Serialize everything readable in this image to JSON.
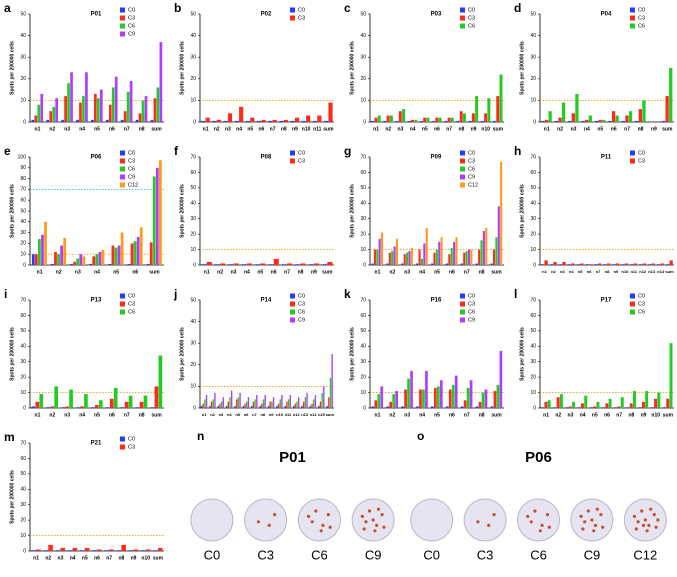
{
  "chart_data": [
    {
      "type": "bar",
      "panel": "a",
      "title": "P01",
      "y_label": "Spots per 200000 cells",
      "ylim": [
        0,
        50
      ],
      "yticks": [
        0,
        10,
        20,
        30,
        40,
        50
      ],
      "reference_lines": [
        {
          "value": 10,
          "color": "#f39c12"
        }
      ],
      "categories": [
        "n1",
        "n2",
        "n3",
        "n4",
        "n5",
        "n6",
        "n7",
        "n8",
        "sum"
      ],
      "series": [
        {
          "name": "C0",
          "color": "#1f3fff",
          "values": [
            1,
            1,
            1,
            1,
            1,
            1,
            1,
            1,
            1
          ]
        },
        {
          "name": "C3",
          "color": "#ff2a1a",
          "values": [
            3,
            5,
            12,
            9,
            13,
            8,
            5,
            4,
            11
          ]
        },
        {
          "name": "C6",
          "color": "#22cc22",
          "values": [
            8,
            7,
            18,
            12,
            11,
            16,
            14,
            10,
            16
          ]
        },
        {
          "name": "C9",
          "color": "#b03cff",
          "values": [
            13,
            11,
            23,
            23,
            15,
            21,
            19,
            12,
            37
          ]
        }
      ]
    },
    {
      "type": "bar",
      "panel": "b",
      "title": "P02",
      "y_label": "Spots per 200000 cells",
      "ylim": [
        0,
        50
      ],
      "yticks": [
        0,
        10,
        20,
        30,
        40,
        50
      ],
      "reference_lines": [
        {
          "value": 10,
          "color": "#f39c12"
        }
      ],
      "categories": [
        "n1",
        "n2",
        "n3",
        "n4",
        "n5",
        "n6",
        "n7",
        "n8",
        "n9",
        "n10",
        "n11",
        "sum"
      ],
      "series": [
        {
          "name": "C0",
          "color": "#1f3fff",
          "values": [
            0.5,
            0.5,
            0.5,
            0.5,
            0.5,
            0.5,
            0.5,
            0.5,
            0.5,
            0.5,
            0.5,
            0.5
          ]
        },
        {
          "name": "C3",
          "color": "#ff2a1a",
          "values": [
            2,
            1,
            4,
            7,
            2,
            1,
            1,
            1,
            2,
            3,
            3,
            9
          ]
        }
      ]
    },
    {
      "type": "bar",
      "panel": "c",
      "title": "P03",
      "y_label": "Spots per 200000 cells",
      "ylim": [
        0,
        50
      ],
      "yticks": [
        0,
        10,
        20,
        30,
        40,
        50
      ],
      "reference_lines": [
        {
          "value": 10,
          "color": "#f39c12"
        }
      ],
      "categories": [
        "n1",
        "n2",
        "n3",
        "n4",
        "n5",
        "n6",
        "n7",
        "n8",
        "n9",
        "n10",
        "sum"
      ],
      "series": [
        {
          "name": "C0",
          "color": "#1f3fff",
          "values": [
            0.5,
            0.5,
            0.5,
            0.5,
            0.5,
            0.5,
            0.5,
            0.5,
            0.5,
            0.5,
            0.5
          ]
        },
        {
          "name": "C3",
          "color": "#ff2a1a",
          "values": [
            2,
            3,
            5,
            1,
            2,
            2,
            2,
            5,
            4,
            4,
            12
          ]
        },
        {
          "name": "C6",
          "color": "#22cc22",
          "values": [
            3,
            3,
            6,
            1,
            2,
            2,
            2,
            4,
            12,
            11,
            22
          ]
        }
      ]
    },
    {
      "type": "bar",
      "panel": "d",
      "title": "P04",
      "y_label": "Spots per 200000 cells",
      "ylim": [
        0,
        50
      ],
      "yticks": [
        0,
        10,
        20,
        30,
        40,
        50
      ],
      "reference_lines": [
        {
          "value": 10,
          "color": "#f39c12"
        }
      ],
      "categories": [
        "n1",
        "n2",
        "n3",
        "n4",
        "n5",
        "n6",
        "n7",
        "n8",
        "n9",
        "sum"
      ],
      "series": [
        {
          "name": "C0",
          "color": "#1f3fff",
          "values": [
            0.5,
            0.5,
            0.5,
            0.5,
            0.5,
            0.5,
            0.5,
            0.5,
            0,
            0.5
          ]
        },
        {
          "name": "C3",
          "color": "#ff2a1a",
          "values": [
            1,
            2,
            4,
            1,
            1,
            5,
            3,
            6,
            0,
            12
          ]
        },
        {
          "name": "C6",
          "color": "#22cc22",
          "values": [
            5,
            9,
            13,
            3,
            1,
            3,
            5,
            10,
            0,
            25
          ]
        }
      ]
    },
    {
      "type": "bar",
      "panel": "e",
      "title": "P06",
      "y_label": "Spots per 200000 cells",
      "ylim": [
        0,
        100
      ],
      "yticks": [
        0,
        10,
        20,
        30,
        40,
        50,
        60,
        70,
        80,
        90,
        100
      ],
      "reference_lines": [
        {
          "value": 10,
          "color": "#f39c12"
        },
        {
          "value": 70,
          "color": "#1ec8e0"
        }
      ],
      "categories": [
        "n1",
        "n2",
        "n3",
        "n4",
        "n5",
        "n6",
        "sum"
      ],
      "series": [
        {
          "name": "C0",
          "color": "#1f3fff",
          "values": [
            10,
            1,
            1,
            1,
            1,
            1,
            1
          ]
        },
        {
          "name": "C3",
          "color": "#ff2a1a",
          "values": [
            10,
            12,
            3,
            8,
            18,
            20,
            21
          ]
        },
        {
          "name": "C6",
          "color": "#22cc22",
          "values": [
            24,
            10,
            6,
            10,
            16,
            22,
            82
          ]
        },
        {
          "name": "C9",
          "color": "#b03cff",
          "values": [
            28,
            18,
            10,
            12,
            18,
            26,
            90
          ]
        },
        {
          "name": "C12",
          "color": "#ff9a1a",
          "values": [
            40,
            25,
            8,
            14,
            30,
            35,
            97
          ]
        }
      ]
    },
    {
      "type": "bar",
      "panel": "f",
      "title": "P08",
      "y_label": "Spots per 200000 cells",
      "ylim": [
        0,
        70
      ],
      "yticks": [
        0,
        10,
        20,
        30,
        40,
        50,
        60,
        70
      ],
      "reference_lines": [
        {
          "value": 10,
          "color": "#f39c12"
        }
      ],
      "categories": [
        "n1",
        "n2",
        "n3",
        "n4",
        "n5",
        "n6",
        "n7",
        "n8",
        "n9",
        "sum"
      ],
      "series": [
        {
          "name": "C0",
          "color": "#1f3fff",
          "values": [
            0.5,
            0.5,
            0.5,
            0.5,
            0.5,
            0.5,
            0.5,
            0.5,
            0.5,
            0.5
          ]
        },
        {
          "name": "C3",
          "color": "#ff2a1a",
          "values": [
            2,
            1,
            1,
            1,
            1,
            4,
            1,
            1,
            1,
            2
          ]
        }
      ]
    },
    {
      "type": "bar",
      "panel": "g",
      "title": "P09",
      "y_label": "Spots per 200000 cells",
      "ylim": [
        0,
        70
      ],
      "yticks": [
        0,
        10,
        20,
        30,
        40,
        50,
        60,
        70
      ],
      "reference_lines": [
        {
          "value": 10,
          "color": "#f39c12"
        }
      ],
      "categories": [
        "n1",
        "n2",
        "n3",
        "n4",
        "n5",
        "n6",
        "n7",
        "n8",
        "sum"
      ],
      "series": [
        {
          "name": "C0",
          "color": "#1f3fff",
          "values": [
            1,
            1,
            1,
            1,
            1,
            1,
            1,
            1,
            1
          ]
        },
        {
          "name": "C3",
          "color": "#ff2a1a",
          "values": [
            10,
            8,
            7,
            10,
            8,
            7,
            8,
            10,
            10
          ]
        },
        {
          "name": "C6",
          "color": "#22cc22",
          "values": [
            10,
            9,
            8,
            4,
            10,
            11,
            9,
            16,
            18
          ]
        },
        {
          "name": "C9",
          "color": "#b03cff",
          "values": [
            17,
            12,
            9,
            14,
            15,
            15,
            10,
            22,
            38
          ]
        },
        {
          "name": "C12",
          "color": "#ff9a1a",
          "values": [
            21,
            17,
            11,
            24,
            18,
            18,
            10,
            24,
            67
          ]
        }
      ]
    },
    {
      "type": "bar",
      "panel": "h",
      "title": "P11",
      "y_label": "Spots per 200000 cells",
      "ylim": [
        0,
        70
      ],
      "yticks": [
        0,
        10,
        20,
        30,
        40,
        50,
        60,
        70
      ],
      "reference_lines": [
        {
          "value": 10,
          "color": "#f39c12"
        }
      ],
      "categories": [
        "n1",
        "n2",
        "n3",
        "n4",
        "n5",
        "n6",
        "n7",
        "n8",
        "n9",
        "n10",
        "n11",
        "n12",
        "n13",
        "n14",
        "sum"
      ],
      "series": [
        {
          "name": "C0",
          "color": "#1f3fff",
          "values": [
            0.5,
            0.5,
            0.5,
            0.5,
            0.5,
            0.5,
            0.5,
            0.5,
            0.5,
            0.5,
            0.5,
            0.5,
            0.5,
            0.5,
            0.5
          ]
        },
        {
          "name": "C3",
          "color": "#ff2a1a",
          "values": [
            3,
            2,
            2,
            1,
            1,
            0.5,
            1,
            1,
            1,
            1,
            1,
            1,
            1,
            1,
            3
          ]
        }
      ]
    },
    {
      "type": "bar",
      "panel": "i",
      "title": "P13",
      "y_label": "Spots per 200000 cells",
      "ylim": [
        0,
        70
      ],
      "yticks": [
        0,
        10,
        20,
        30,
        40,
        50,
        60,
        70
      ],
      "reference_lines": [
        {
          "value": 10,
          "color": "#f39c12"
        }
      ],
      "categories": [
        "n1",
        "n2",
        "n3",
        "n4",
        "n5",
        "n6",
        "n7",
        "n8",
        "sum"
      ],
      "series": [
        {
          "name": "C0",
          "color": "#1f3fff",
          "values": [
            1,
            0.5,
            0.5,
            0.5,
            0.5,
            0.5,
            0.5,
            0.5,
            0.5
          ]
        },
        {
          "name": "C3",
          "color": "#ff2a1a",
          "values": [
            4,
            1,
            1,
            1,
            2,
            6,
            4,
            4,
            14
          ]
        },
        {
          "name": "C6",
          "color": "#22cc22",
          "values": [
            9,
            14,
            12,
            9,
            5,
            13,
            8,
            8,
            34
          ]
        }
      ]
    },
    {
      "type": "bar",
      "panel": "j",
      "title": "P14",
      "y_label": "Spots per 200000 cells",
      "ylim": [
        0,
        50
      ],
      "yticks": [
        0,
        10,
        20,
        30,
        40,
        50
      ],
      "reference_lines": [
        {
          "value": 10,
          "color": "#f39c12"
        }
      ],
      "categories": [
        "n1",
        "n2",
        "n3",
        "n4",
        "n5",
        "n6",
        "n7",
        "n8",
        "n9",
        "n10",
        "n11",
        "n12",
        "n13",
        "n14",
        "n15",
        "sum"
      ],
      "series": [
        {
          "name": "C0",
          "color": "#1f3fff",
          "values": [
            1,
            1,
            1,
            1,
            1,
            1,
            1,
            1,
            1,
            1,
            1,
            1,
            1,
            1,
            1,
            1
          ]
        },
        {
          "name": "C3",
          "color": "#ff2a1a",
          "values": [
            2,
            3,
            2,
            3,
            4,
            2,
            3,
            2,
            3,
            2,
            3,
            2,
            3,
            2,
            3,
            5
          ]
        },
        {
          "name": "C6",
          "color": "#22cc22",
          "values": [
            4,
            4,
            3,
            5,
            5,
            3,
            4,
            4,
            3,
            4,
            4,
            3,
            5,
            4,
            7,
            14
          ]
        },
        {
          "name": "C9",
          "color": "#b03cff",
          "values": [
            6,
            7,
            5,
            8,
            7,
            5,
            6,
            6,
            5,
            6,
            6,
            5,
            7,
            6,
            10,
            25
          ]
        }
      ]
    },
    {
      "type": "bar",
      "panel": "k",
      "title": "P16",
      "y_label": "Spots per 200000 cells",
      "ylim": [
        0,
        70
      ],
      "yticks": [
        0,
        10,
        20,
        30,
        40,
        50,
        60,
        70
      ],
      "reference_lines": [
        {
          "value": 10,
          "color": "#f39c12"
        }
      ],
      "categories": [
        "n1",
        "n2",
        "n3",
        "n4",
        "n5",
        "n6",
        "n7",
        "n8",
        "sum"
      ],
      "series": [
        {
          "name": "C0",
          "color": "#1f3fff",
          "values": [
            1,
            1,
            1,
            1,
            1,
            1,
            1,
            1,
            1
          ]
        },
        {
          "name": "C3",
          "color": "#ff2a1a",
          "values": [
            5,
            4,
            12,
            12,
            13,
            12,
            5,
            4,
            11
          ]
        },
        {
          "name": "C6",
          "color": "#22cc22",
          "values": [
            9,
            9,
            19,
            12,
            14,
            15,
            13,
            10,
            15
          ]
        },
        {
          "name": "C9",
          "color": "#b03cff",
          "values": [
            14,
            11,
            24,
            24,
            18,
            21,
            18,
            12,
            37
          ]
        }
      ]
    },
    {
      "type": "bar",
      "panel": "l",
      "title": "P17",
      "y_label": "Spots per 200000 cells",
      "ylim": [
        0,
        70
      ],
      "yticks": [
        0,
        10,
        20,
        30,
        40,
        50,
        60,
        70
      ],
      "reference_lines": [
        {
          "value": 10,
          "color": "#f39c12"
        }
      ],
      "categories": [
        "n1",
        "n2",
        "n3",
        "n4",
        "n5",
        "n6",
        "n7",
        "n8",
        "n9",
        "n10",
        "sum"
      ],
      "series": [
        {
          "name": "C0",
          "color": "#1f3fff",
          "values": [
            0.5,
            0.5,
            0.5,
            0.5,
            0.5,
            0.5,
            0.5,
            0.5,
            0.5,
            0.5,
            0.5
          ]
        },
        {
          "name": "C3",
          "color": "#ff2a1a",
          "values": [
            4,
            7,
            1,
            3,
            1,
            3,
            1,
            3,
            4,
            6,
            6
          ]
        },
        {
          "name": "C6",
          "color": "#22cc22",
          "values": [
            5,
            9,
            4,
            8,
            4,
            6,
            7,
            11,
            11,
            10,
            42
          ]
        }
      ]
    },
    {
      "type": "bar",
      "panel": "m",
      "title": "P21",
      "y_label": "Spots per 200000 cells",
      "ylim": [
        0,
        70
      ],
      "yticks": [
        0,
        10,
        20,
        30,
        40,
        50,
        60,
        70
      ],
      "reference_lines": [
        {
          "value": 10,
          "color": "#f39c12"
        }
      ],
      "categories": [
        "n1",
        "n2",
        "n3",
        "n4",
        "n5",
        "n6",
        "n7",
        "n8",
        "n9",
        "n10",
        "sum"
      ],
      "series": [
        {
          "name": "C0",
          "color": "#1f3fff",
          "values": [
            0.5,
            0.5,
            0.5,
            0.5,
            0.5,
            0.5,
            0.5,
            0.5,
            0.5,
            0.5,
            0.5
          ]
        },
        {
          "name": "C3",
          "color": "#ff2a1a",
          "values": [
            1,
            4,
            2,
            2,
            2,
            1,
            1,
            4,
            1,
            1,
            2
          ]
        }
      ]
    }
  ],
  "wells": [
    {
      "panel": "n",
      "title": "P01",
      "labels": [
        "C0",
        "C3",
        "C6",
        "C9"
      ]
    },
    {
      "panel": "o",
      "title": "P06",
      "labels": [
        "C0",
        "C3",
        "C6",
        "C9",
        "C12"
      ]
    }
  ]
}
